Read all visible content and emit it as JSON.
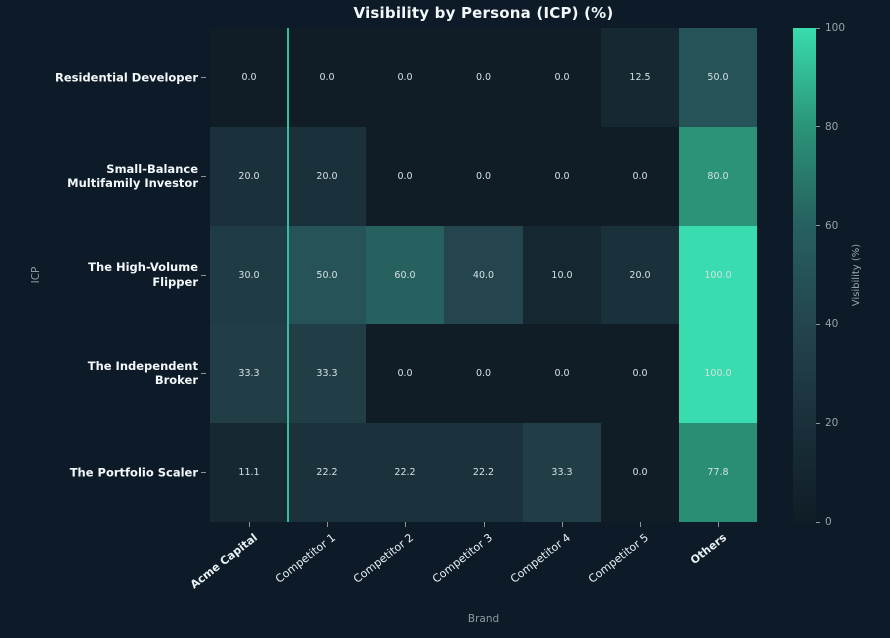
{
  "chart_data": {
    "type": "heatmap",
    "title": "Visibility by Persona (ICP) (%)",
    "xlabel": "Brand",
    "ylabel": "ICP",
    "x_categories": [
      "Acme Capital",
      "Competitor 1",
      "Competitor 2",
      "Competitor 3",
      "Competitor 4",
      "Competitor 5",
      "Others"
    ],
    "x_bold": [
      true,
      false,
      false,
      false,
      false,
      false,
      true
    ],
    "y_categories": [
      "Residential Developer",
      "Small-Balance Multifamily Investor",
      "The High-Volume Flipper",
      "The Independent Broker",
      "The Portfolio Scaler"
    ],
    "values": [
      [
        0.0,
        0.0,
        0.0,
        0.0,
        0.0,
        12.5,
        50.0
      ],
      [
        20.0,
        20.0,
        0.0,
        0.0,
        0.0,
        0.0,
        80.0
      ],
      [
        30.0,
        50.0,
        60.0,
        40.0,
        10.0,
        20.0,
        100.0
      ],
      [
        33.3,
        33.3,
        0.0,
        0.0,
        0.0,
        0.0,
        100.0
      ],
      [
        11.1,
        22.2,
        22.2,
        22.2,
        33.3,
        0.0,
        77.8
      ]
    ],
    "value_decimals": 1,
    "vrange": [
      0,
      100
    ],
    "highlight_divider_after_column": 0,
    "colorbar": {
      "label": "Visibility (%)",
      "ticks": [
        0,
        20,
        40,
        60,
        80,
        100
      ]
    },
    "legend_position": "right",
    "grid": false,
    "colors": {
      "background": "#0d1b28",
      "colormap_stops": [
        [
          0,
          "#101d27"
        ],
        [
          20,
          "#1a303a"
        ],
        [
          40,
          "#24454e"
        ],
        [
          60,
          "#26605f"
        ],
        [
          80,
          "#2b9478"
        ],
        [
          100,
          "#39dcae"
        ]
      ],
      "divider_line": "#2fbf9f",
      "cell_text": "#d5e0e5",
      "title_text": "#f2f7f9",
      "category_text": "#eaf1f4",
      "colorbar_tick_text": "#97a3ab",
      "axis_label_text": "#8c9ba4"
    }
  }
}
